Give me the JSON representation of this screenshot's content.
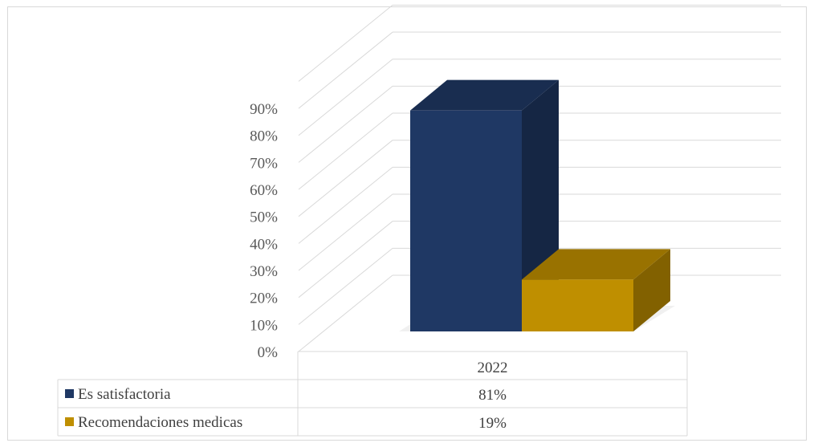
{
  "chart_data": {
    "type": "bar",
    "categories": [
      "2022"
    ],
    "series": [
      {
        "name": "Es satisfactoria",
        "values": [
          81
        ],
        "color": "#1f3864",
        "label": "81%"
      },
      {
        "name": "Recomendaciones medicas",
        "values": [
          19
        ],
        "color": "#bf8f00",
        "label": "19%"
      }
    ],
    "y_ticks": [
      "0%",
      "10%",
      "20%",
      "30%",
      "40%",
      "50%",
      "60%",
      "70%",
      "80%",
      "90%"
    ],
    "ylim": [
      0,
      90
    ],
    "grid": true,
    "legend": "data-table-below",
    "style": "3d-clustered-column"
  }
}
